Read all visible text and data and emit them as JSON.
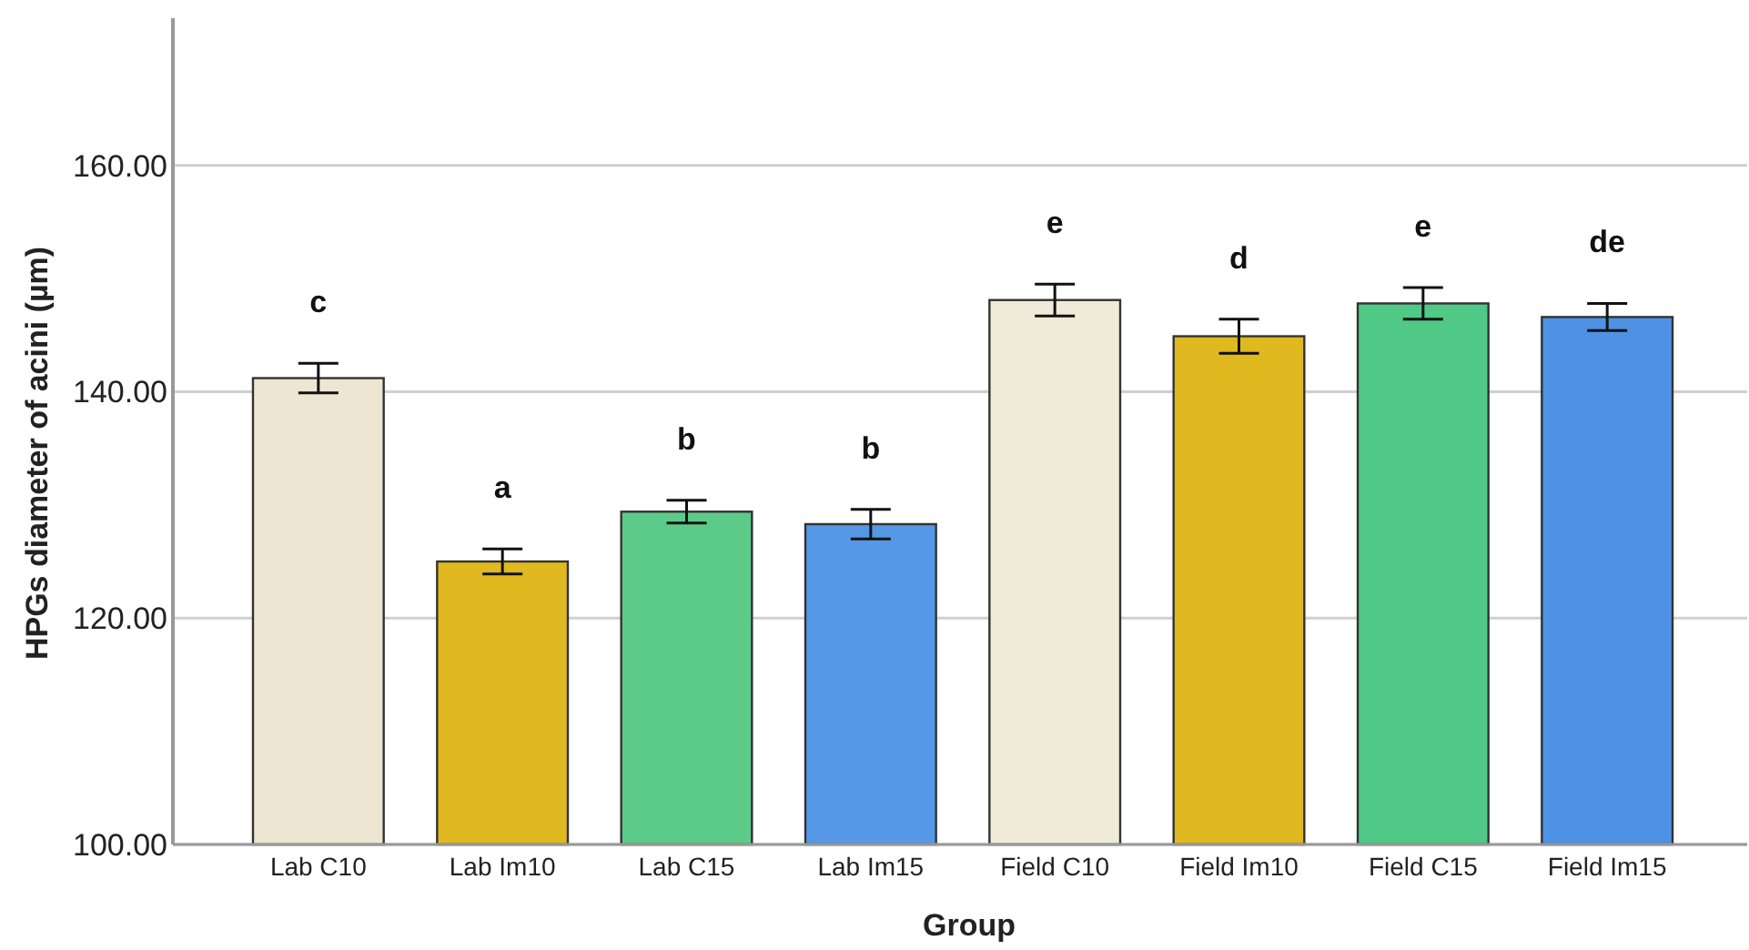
{
  "chart_data": {
    "type": "bar",
    "xlabel": "Group",
    "ylabel": "HPGs diameter of acini (µm)",
    "categories": [
      "Lab C10",
      "Lab Im10",
      "Lab C15",
      "Lab Im15",
      "Field C10",
      "Field Im10",
      "Field C15",
      "Field Im15"
    ],
    "values": [
      141.2,
      125.0,
      129.4,
      128.3,
      148.1,
      144.9,
      147.8,
      146.6
    ],
    "errors": [
      1.3,
      1.1,
      1.0,
      1.3,
      1.4,
      1.5,
      1.4,
      1.2
    ],
    "colors": [
      "#ede6d2",
      "#e0b820",
      "#5ccb8a",
      "#5598e6",
      "#efebd8",
      "#e0b820",
      "#4fc985",
      "#4d92e3"
    ],
    "ylim": [
      100,
      173
    ],
    "yticks": [
      {
        "value": 100,
        "label": "100.00"
      },
      {
        "value": 120,
        "label": "120.00"
      },
      {
        "value": 140,
        "label": "140.00"
      },
      {
        "value": 160,
        "label": "160.00"
      }
    ],
    "grid": "y",
    "annotations": [
      "c",
      "a",
      "b",
      "b",
      "e",
      "d",
      "e",
      "de"
    ]
  }
}
